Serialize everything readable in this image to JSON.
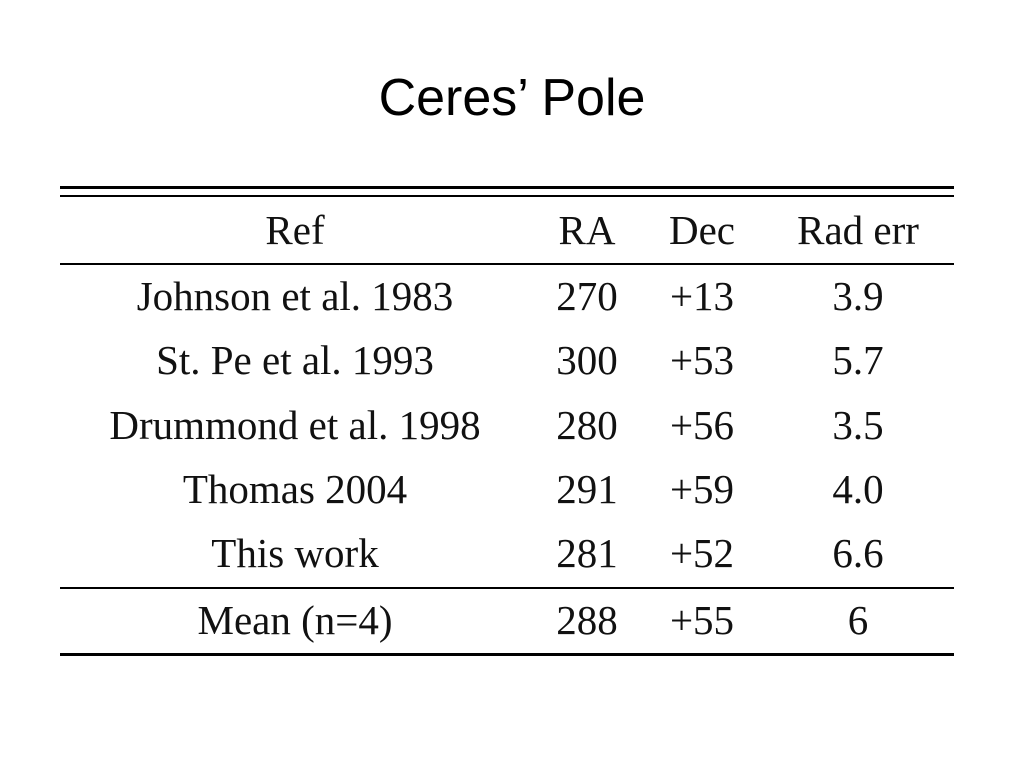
{
  "title": "Ceres’ Pole",
  "table": {
    "header": [
      "Ref",
      "RA",
      "Dec",
      "Rad err"
    ],
    "rows": [
      [
        "Johnson et al. 1983",
        "270",
        "+13",
        "3.9"
      ],
      [
        "St. Pe et al. 1993",
        "300",
        "+53",
        "5.7"
      ],
      [
        "Drummond et al. 1998",
        "280",
        "+56",
        "3.5"
      ],
      [
        "Thomas 2004",
        "291",
        "+59",
        "4.0"
      ],
      [
        "This work",
        "281",
        "+52",
        "6.6"
      ]
    ],
    "footer": [
      "Mean (n=4)",
      "288",
      "+55",
      "6"
    ]
  }
}
